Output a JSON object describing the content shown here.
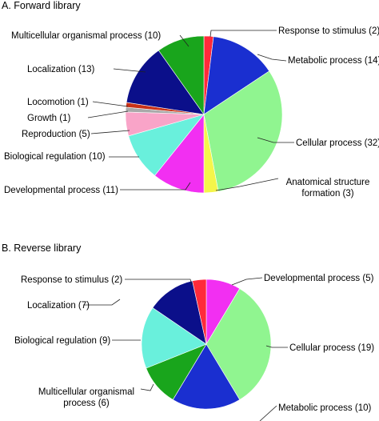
{
  "chart_data": [
    {
      "type": "pie",
      "title": "A. Forward library",
      "slices": [
        {
          "label": "Response to stimulus (2)",
          "value": 2,
          "color": "#ff2a3a"
        },
        {
          "label": "Metabolic process (14)",
          "value": 14,
          "color": "#1a2fd0"
        },
        {
          "label": "Cellular process (32)",
          "value": 32,
          "color": "#90f590"
        },
        {
          "label": [
            "Anatomical structure",
            "formation (3)"
          ],
          "value": 3,
          "color": "#f5f54a"
        },
        {
          "label": "Developmental process (11)",
          "value": 11,
          "color": "#f22ff2"
        },
        {
          "label": "Biological regulation (10)",
          "value": 10,
          "color": "#69f0dc"
        },
        {
          "label": "Reproduction (5)",
          "value": 5,
          "color": "#f9a4c8"
        },
        {
          "label": "Growth (1)",
          "value": 1,
          "color": "#a9a9a9"
        },
        {
          "label": "Locomotion (1)",
          "value": 1,
          "color": "#c83218"
        },
        {
          "label": "Localization (13)",
          "value": 13,
          "color": "#0b0f8a"
        },
        {
          "label": "Multicellular organismal process (10)",
          "value": 10,
          "color": "#19a51c"
        }
      ]
    },
    {
      "type": "pie",
      "title": "B. Reverse library",
      "slices": [
        {
          "label": "Developmental process (5)",
          "value": 5,
          "color": "#f22ff2"
        },
        {
          "label": "Cellular process (19)",
          "value": 19,
          "color": "#90f590"
        },
        {
          "label": "Metabolic process (10)",
          "value": 10,
          "color": "#1a2fd0"
        },
        {
          "label": [
            "Multicellular organismal",
            "process (6)"
          ],
          "value": 6,
          "color": "#19a51c"
        },
        {
          "label": "Biological regulation (9)",
          "value": 9,
          "color": "#69f0dc"
        },
        {
          "label": "Localization (7)",
          "value": 7,
          "color": "#0b0f8a"
        },
        {
          "label": "Response to stimulus (2)",
          "value": 2,
          "color": "#ff2a3a"
        }
      ]
    }
  ]
}
